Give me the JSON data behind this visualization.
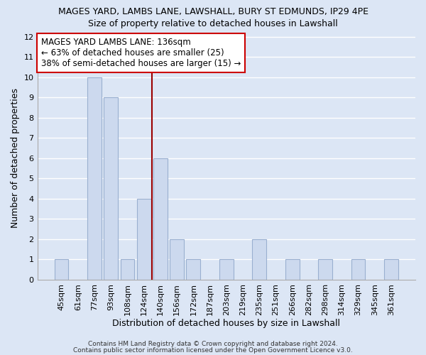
{
  "title": "MAGES YARD, LAMBS LANE, LAWSHALL, BURY ST EDMUNDS, IP29 4PE",
  "subtitle": "Size of property relative to detached houses in Lawshall",
  "xlabel": "Distribution of detached houses by size in Lawshall",
  "ylabel": "Number of detached properties",
  "bar_labels": [
    "45sqm",
    "61sqm",
    "77sqm",
    "93sqm",
    "108sqm",
    "124sqm",
    "140sqm",
    "156sqm",
    "172sqm",
    "187sqm",
    "203sqm",
    "219sqm",
    "235sqm",
    "251sqm",
    "266sqm",
    "282sqm",
    "298sqm",
    "314sqm",
    "329sqm",
    "345sqm",
    "361sqm"
  ],
  "bar_values": [
    1,
    0,
    10,
    9,
    1,
    4,
    6,
    2,
    1,
    0,
    1,
    0,
    2,
    0,
    1,
    0,
    1,
    0,
    1,
    0,
    1
  ],
  "bar_color": "#ccd9ee",
  "bar_edge_color": "#9ab0d0",
  "ylim": [
    0,
    12
  ],
  "yticks": [
    0,
    1,
    2,
    3,
    4,
    5,
    6,
    7,
    8,
    9,
    10,
    11,
    12
  ],
  "redline_index": 5.5,
  "annotation_title": "MAGES YARD LAMBS LANE: 136sqm",
  "annotation_line1": "← 63% of detached houses are smaller (25)",
  "annotation_line2": "38% of semi-detached houses are larger (15) →",
  "footer1": "Contains HM Land Registry data © Crown copyright and database right 2024.",
  "footer2": "Contains public sector information licensed under the Open Government Licence v3.0.",
  "background_color": "#dce6f5",
  "plot_bg_color": "#dce6f5",
  "grid_color": "#ffffff",
  "annotation_box_color": "#ffffff",
  "annotation_box_edge": "#cc0000",
  "redline_color": "#9b0000",
  "title_fontsize": 9,
  "subtitle_fontsize": 9,
  "xlabel_fontsize": 9,
  "ylabel_fontsize": 9,
  "tick_fontsize": 8,
  "annotation_fontsize": 8.5,
  "footer_fontsize": 6.5
}
